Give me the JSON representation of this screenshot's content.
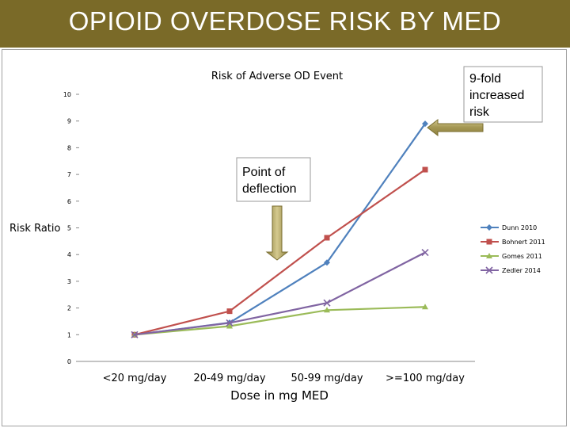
{
  "slide": {
    "title": "OPIOID OVERDOSE RISK BY MED"
  },
  "chart_data": {
    "type": "line",
    "title": "Risk of Adverse OD Event",
    "xlabel": "Dose in mg MED",
    "ylabel": "Risk Ratio",
    "categories": [
      "<20 mg/day",
      "20-49 mg/day",
      "50-99 mg/day",
      ">=100 mg/day"
    ],
    "ylim": [
      0,
      10
    ],
    "yticks": [
      0,
      1,
      2,
      3,
      4,
      5,
      6,
      7,
      8,
      9,
      10
    ],
    "grid": false,
    "legend_position": "right",
    "series": [
      {
        "name": "Dunn 2010",
        "color": "#4f81bd",
        "marker": "diamond",
        "values": [
          1.0,
          1.45,
          3.7,
          8.9
        ]
      },
      {
        "name": "Bohnert 2011",
        "color": "#c0504d",
        "marker": "square",
        "values": [
          1.0,
          1.88,
          4.63,
          7.18
        ]
      },
      {
        "name": "Gomes 2011",
        "color": "#9bbb59",
        "marker": "triangle",
        "values": [
          1.0,
          1.32,
          1.92,
          2.04
        ]
      },
      {
        "name": "Zedler 2014",
        "color": "#8064a2",
        "marker": "x",
        "values": [
          1.0,
          1.44,
          2.19,
          4.08
        ]
      }
    ],
    "annotations": [
      {
        "id": "ninefold",
        "text_lines": [
          "9-fold",
          "increased",
          "risk"
        ]
      },
      {
        "id": "deflection",
        "text_lines": [
          "Point of",
          "deflection"
        ]
      }
    ],
    "callout_color": "#a39652"
  }
}
